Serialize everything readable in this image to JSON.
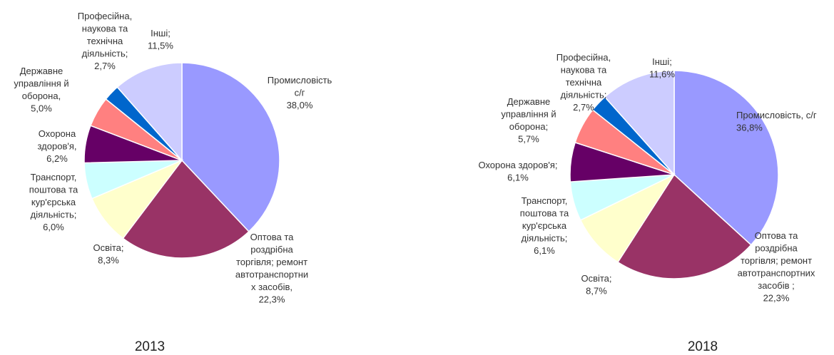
{
  "chart_data": [
    {
      "type": "pie",
      "title": "2013",
      "slices": [
        {
          "label": "Промисловість с/г",
          "text": [
            "Промисловість",
            "с/г",
            "38,0%"
          ],
          "value": 38.0,
          "color": "#9999ff"
        },
        {
          "label": "Оптова та роздрібна торгівля; ремонт автотранспортних засобів",
          "text": [
            "Оптова та",
            "роздрібна",
            "торгівля; ремонт",
            "автотранспортни",
            "х засобів,",
            "22,3%"
          ],
          "value": 22.3,
          "color": "#993366"
        },
        {
          "label": "Освіта",
          "text": [
            "Освіта;",
            "8,3%"
          ],
          "value": 8.3,
          "color": "#ffffcc"
        },
        {
          "label": "Транспорт, поштова та кур'єрська діяльність",
          "text": [
            "Транспорт,",
            "поштова та",
            "кур'єрська",
            "діяльність;",
            "6,0%"
          ],
          "value": 6.0,
          "color": "#ccffff"
        },
        {
          "label": "Охорона здоров'я",
          "text": [
            "Охорона",
            "здоров'я,",
            "6,2%"
          ],
          "value": 6.2,
          "color": "#660066"
        },
        {
          "label": "Державне управління й оборона",
          "text": [
            "Державне",
            "управління й",
            "оборона,",
            "5,0%"
          ],
          "value": 5.0,
          "color": "#ff8080"
        },
        {
          "label": "Професійна, наукова та технічна діяльність",
          "text": [
            "Професійна,",
            "наукова та",
            "технічна",
            "діяльність;",
            "2,7%"
          ],
          "value": 2.7,
          "color": "#0066cc"
        },
        {
          "label": "Інші",
          "text": [
            "Інші;",
            "11,5%"
          ],
          "value": 11.5,
          "color": "#ccccff"
        }
      ]
    },
    {
      "type": "pie",
      "title": "2018",
      "slices": [
        {
          "label": "Промисловість, с/г",
          "text": [
            "Промисловість, с/г",
            "36,8%"
          ],
          "value": 36.8,
          "color": "#9999ff"
        },
        {
          "label": "Оптова та роздрібна торгівля; ремонт автотранспортних засобів",
          "text": [
            "Оптова та",
            "роздрібна",
            "торгівля; ремонт",
            "автотранспортних",
            "засобів ;",
            "22,3%"
          ],
          "value": 22.3,
          "color": "#993366"
        },
        {
          "label": "Освіта",
          "text": [
            "Освіта;",
            "8,7%"
          ],
          "value": 8.7,
          "color": "#ffffcc"
        },
        {
          "label": "Транспорт, поштова та кур'єрська діяльність",
          "text": [
            "Транспорт,",
            "поштова та",
            "кур'єрська",
            "діяльність;",
            "6,1%"
          ],
          "value": 6.1,
          "color": "#ccffff"
        },
        {
          "label": "Охорона здоров'я",
          "text": [
            "Охорона здоров'я;",
            "6,1%"
          ],
          "value": 6.1,
          "color": "#660066"
        },
        {
          "label": "Державне управління й оборона",
          "text": [
            "Державне",
            "управління й",
            "оборона;",
            "5,7%"
          ],
          "value": 5.7,
          "color": "#ff8080"
        },
        {
          "label": "Професійна, наукова та технічна діяльність",
          "text": [
            "Професійна,",
            "наукова та",
            "технічна",
            "діяльність;",
            "2,7%"
          ],
          "value": 2.7,
          "color": "#0066cc"
        },
        {
          "label": "Інші",
          "text": [
            "Інші;",
            "11,6%"
          ],
          "value": 11.6,
          "color": "#ccccff"
        }
      ]
    }
  ]
}
